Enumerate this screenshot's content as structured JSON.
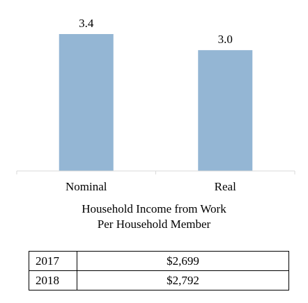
{
  "chart_data": {
    "type": "bar",
    "categories": [
      "Nominal",
      "Real"
    ],
    "values": [
      3.4,
      3.0
    ],
    "value_labels": [
      "3.4",
      "3.0"
    ],
    "title": "",
    "xlabel": "",
    "ylabel": "",
    "ylim": [
      0,
      3.4
    ],
    "grid": false,
    "legend": "none",
    "bar_color": "#94b6d4"
  },
  "caption": {
    "line1": "Household Income from Work",
    "line2": "Per Household Member"
  },
  "table": {
    "rows": [
      {
        "year": "2017",
        "value": "$2,699"
      },
      {
        "year": "2018",
        "value": "$2,792"
      }
    ]
  }
}
